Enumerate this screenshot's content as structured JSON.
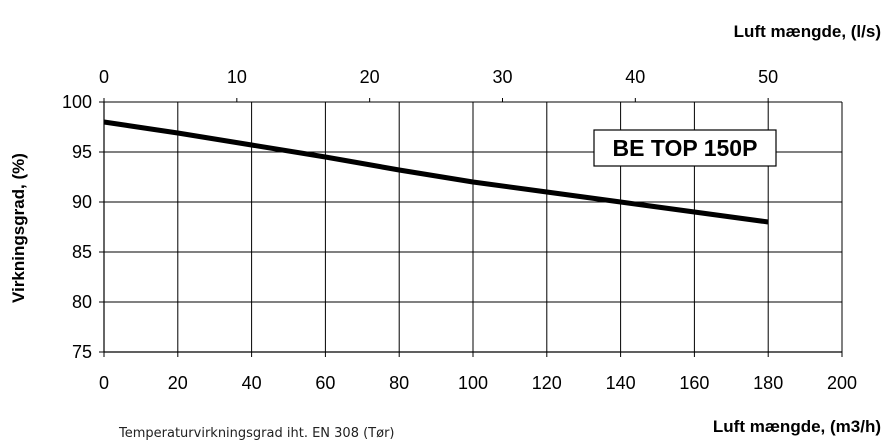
{
  "chart_data": {
    "type": "line",
    "xlabel": "Luft mængde, (m3/h)",
    "x2label": "Luft mængde, (l/s)",
    "ylabel": "Virkningsgrad, (%)",
    "xlim": [
      0,
      200
    ],
    "x_ticks": [
      0,
      20,
      40,
      60,
      80,
      100,
      120,
      140,
      160,
      180,
      200
    ],
    "x2lim": [
      0,
      55.56
    ],
    "x2_ticks": [
      0,
      10,
      20,
      30,
      40,
      50
    ],
    "ylim": [
      75,
      100
    ],
    "y_ticks": [
      75,
      80,
      85,
      90,
      95,
      100
    ],
    "grid": true,
    "series": [
      {
        "name": "",
        "x": [
          0,
          20,
          40,
          60,
          80,
          100,
          120,
          140,
          160,
          180
        ],
        "y": [
          98.0,
          96.9,
          95.7,
          94.5,
          93.2,
          92.0,
          91.0,
          90.0,
          89.0,
          88.0
        ]
      }
    ],
    "annotation": "BE TOP 150P",
    "footnote": "Temperaturvirkningsgrad iht. EN 308 (Tør)"
  }
}
